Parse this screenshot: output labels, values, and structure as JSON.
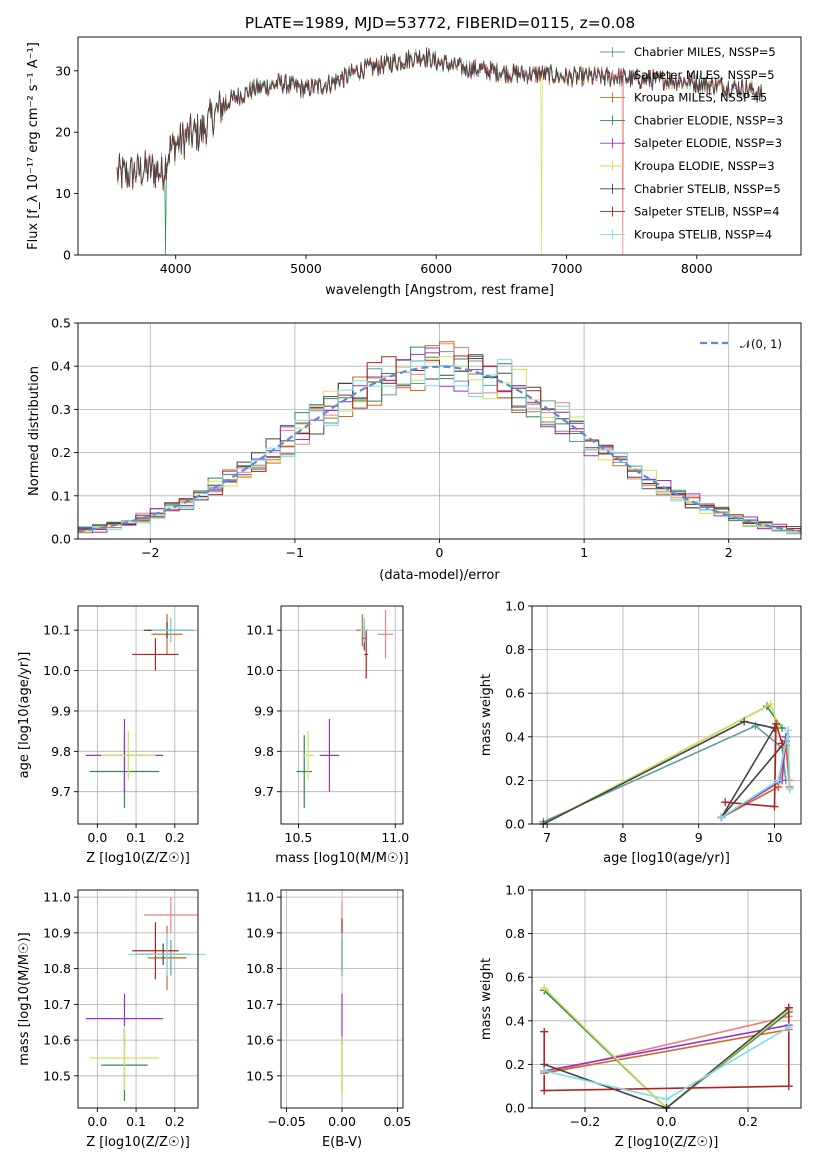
{
  "figure_title": "PLATE=1989, MJD=53772, FIBERID=0115, z=0.08",
  "colors": [
    "#5f9ea0",
    "#f08080",
    "#d2691e",
    "#2e8b57",
    "#9932cc",
    "#d4e157",
    "#444444",
    "#b22222",
    "#7fdbe6"
  ],
  "legend_colors": [
    "#5f9ea0",
    "#f08080",
    "#d2691e",
    "#2e8b57",
    "#9932cc",
    "#d4e157",
    "#444444",
    "#b22222",
    "#7fdbe6"
  ],
  "chart_data": [
    {
      "type": "line",
      "title": "PLATE=1989, MJD=53772, FIBERID=0115, z=0.08",
      "xlabel": "wavelength [Angstrom, rest frame]",
      "ylabel": "Flux [f_λ 10⁻¹⁷ erg cm⁻² s⁻¹ A⁻¹]",
      "xlim": [
        3250,
        8800
      ],
      "ylim": [
        0,
        35.5
      ],
      "xticks": [
        4000,
        5000,
        6000,
        7000,
        8000
      ],
      "yticks": [
        0,
        10,
        20,
        30
      ],
      "legend_position": "upper-right",
      "series": [
        {
          "name": "Chabrier MILES, N_SSP=5"
        },
        {
          "name": "Salpeter MILES, N_SSP=5"
        },
        {
          "name": "Kroupa MILES, N_SSP=5"
        },
        {
          "name": "Chabrier ELODIE, N_SSP=3"
        },
        {
          "name": "Salpeter ELODIE, N_SSP=3"
        },
        {
          "name": "Kroupa ELODIE, N_SSP=3"
        },
        {
          "name": "Chabrier STELIB, N_SSP=5"
        },
        {
          "name": "Salpeter STELIB, N_SSP=4"
        },
        {
          "name": "Kroupa STELIB, N_SSP=4"
        }
      ],
      "envelope": {
        "x": [
          3550,
          3700,
          3800,
          3900,
          3950,
          4000,
          4100,
          4200,
          4300,
          4400,
          4600,
          4800,
          5000,
          5200,
          5400,
          5600,
          5800,
          5900,
          6000,
          6200,
          6400,
          6600,
          6800,
          7000,
          7200,
          7400,
          7600,
          7800,
          8000,
          8200,
          8400,
          8500
        ],
        "y": [
          13,
          13.5,
          14,
          13.5,
          17,
          18,
          19.5,
          20,
          23,
          25,
          27,
          28,
          27,
          28,
          30,
          31,
          32,
          32.5,
          31.5,
          30.5,
          30,
          29.5,
          29.5,
          29,
          29,
          29,
          28.5,
          28.5,
          28,
          27.5,
          27,
          26
        ]
      },
      "drops": [
        {
          "series": 3,
          "x": 3920
        },
        {
          "series": 5,
          "x": 6810
        },
        {
          "series": 1,
          "x": 7430
        }
      ]
    },
    {
      "type": "histogram",
      "xlabel": "(data-model)/error",
      "ylabel": "Normed distribution",
      "xlim": [
        -2.5,
        2.5
      ],
      "ylim": [
        0,
        0.5
      ],
      "xticks": [
        -2,
        -1,
        0,
        1,
        2
      ],
      "yticks": [
        0.0,
        0.1,
        0.2,
        0.3,
        0.4,
        0.5
      ],
      "bin_width": 0.1,
      "reference_curve": "𝒩(0, 1)",
      "reference_color": "#5b8dd6",
      "legend_position": "upper-right"
    },
    {
      "type": "errorbar",
      "xlabel": "Z [log10(Z/Z☉)]",
      "ylabel": "age [log10(age/yr)]",
      "xlim": [
        -0.05,
        0.26
      ],
      "ylim": [
        9.62,
        10.16
      ],
      "xticks": [
        0.0,
        0.1,
        0.2
      ],
      "yticks": [
        9.7,
        9.8,
        9.9,
        10.0,
        10.1
      ],
      "points": [
        {
          "x": 0.19,
          "y": 10.1,
          "xerr": 0.05,
          "yerr": 0.03
        },
        {
          "x": 0.19,
          "y": 10.1,
          "xerr": 0.06,
          "yerr": 0.03
        },
        {
          "x": 0.18,
          "y": 10.09,
          "xerr": 0.04,
          "yerr": 0.05
        },
        {
          "x": 0.07,
          "y": 9.75,
          "xerr": 0.09,
          "yerr": 0.09
        },
        {
          "x": 0.07,
          "y": 9.79,
          "xerr": 0.1,
          "yerr": 0.09
        },
        {
          "x": 0.08,
          "y": 9.79,
          "xerr": 0.07,
          "yerr": 0.06
        },
        {
          "x": 0.18,
          "y": 10.1,
          "xerr": 0.06,
          "yerr": 0.02
        },
        {
          "x": 0.15,
          "y": 10.04,
          "xerr": 0.06,
          "yerr": 0.04
        },
        {
          "x": 0.19,
          "y": 10.1,
          "xerr": 0.05,
          "yerr": 0.03
        }
      ]
    },
    {
      "type": "errorbar",
      "xlabel": "mass [log10(M/M☉)]",
      "ylabel": "",
      "xlim": [
        10.41,
        11.04
      ],
      "ylim": [
        9.62,
        10.16
      ],
      "xticks": [
        10.5,
        11.0
      ],
      "yticks": [
        9.7,
        9.8,
        9.9,
        10.0,
        10.1
      ],
      "points": [
        {
          "x": 10.84,
          "y": 10.1,
          "xerr": 0.02,
          "yerr": 0.03
        },
        {
          "x": 10.95,
          "y": 10.09,
          "xerr": 0.04,
          "yerr": 0.06
        },
        {
          "x": 10.83,
          "y": 10.1,
          "xerr": 0.03,
          "yerr": 0.04
        },
        {
          "x": 10.53,
          "y": 9.75,
          "xerr": 0.04,
          "yerr": 0.09
        },
        {
          "x": 10.66,
          "y": 9.79,
          "xerr": 0.05,
          "yerr": 0.09
        },
        {
          "x": 10.55,
          "y": 9.79,
          "xerr": 0.03,
          "yerr": 0.06
        },
        {
          "x": 10.84,
          "y": 10.08,
          "xerr": 0.01,
          "yerr": 0.03
        },
        {
          "x": 10.85,
          "y": 10.04,
          "xerr": 0.01,
          "yerr": 0.06
        },
        {
          "x": 10.84,
          "y": 10.1,
          "xerr": 0.02,
          "yerr": 0.03
        }
      ]
    },
    {
      "type": "line",
      "xlabel": "age [log10(age/yr)]",
      "ylabel": "mass weight",
      "xlim": [
        6.8,
        10.35
      ],
      "ylim": [
        0,
        1.0
      ],
      "xticks": [
        7,
        8,
        9,
        10
      ],
      "yticks": [
        0.0,
        0.2,
        0.4,
        0.6,
        0.8,
        1.0
      ],
      "series": [
        {
          "x": [
            6.95,
            9.75,
            10.1,
            10.15
          ],
          "y": [
            0.01,
            0.45,
            0.35,
            0.2
          ]
        },
        {
          "x": [
            9.3,
            10.05,
            10.15,
            10.2
          ],
          "y": [
            0.03,
            0.17,
            0.4,
            0.2
          ]
        },
        {
          "x": [
            9.3,
            10.05,
            10.15,
            10.2
          ],
          "y": [
            0.03,
            0.17,
            0.36,
            0.17
          ]
        },
        {
          "x": [
            6.95,
            9.9,
            10.1
          ],
          "y": [
            0.0,
            0.54,
            0.44
          ]
        },
        {
          "x": [
            9.3,
            10.1,
            10.15
          ],
          "y": [
            0.03,
            0.2,
            0.4
          ]
        },
        {
          "x": [
            6.95,
            9.95,
            10.05
          ],
          "y": [
            0.0,
            0.55,
            0.45
          ]
        },
        {
          "x": [
            6.95,
            9.6,
            10.0,
            9.3,
            10.15
          ],
          "y": [
            0.0,
            0.47,
            0.44,
            0.03,
            0.38
          ]
        },
        {
          "x": [
            9.35,
            10.0,
            10.02,
            10.1
          ],
          "y": [
            0.1,
            0.08,
            0.46,
            0.37
          ]
        },
        {
          "x": [
            9.3,
            10.05,
            10.18,
            10.2
          ],
          "y": [
            0.03,
            0.2,
            0.43,
            0.16
          ]
        }
      ]
    },
    {
      "type": "errorbar",
      "xlabel": "Z [log10(Z/Z☉)]",
      "ylabel": "mass [log10(M/M☉)]",
      "xlim": [
        -0.05,
        0.26
      ],
      "ylim": [
        10.41,
        11.02
      ],
      "xticks": [
        0.0,
        0.1,
        0.2
      ],
      "yticks": [
        10.5,
        10.6,
        10.7,
        10.8,
        10.9,
        11.0
      ],
      "points": [
        {
          "x": 0.19,
          "y": 10.83,
          "xerr": 0.04,
          "yerr": 0.05
        },
        {
          "x": 0.19,
          "y": 10.95,
          "xerr": 0.07,
          "yerr": 0.05
        },
        {
          "x": 0.18,
          "y": 10.83,
          "xerr": 0.05,
          "yerr": 0.09
        },
        {
          "x": 0.07,
          "y": 10.53,
          "xerr": 0.06,
          "yerr": 0.1
        },
        {
          "x": 0.07,
          "y": 10.66,
          "xerr": 0.1,
          "yerr": 0.07
        },
        {
          "x": 0.07,
          "y": 10.55,
          "xerr": 0.09,
          "yerr": 0.09
        },
        {
          "x": 0.17,
          "y": 10.84,
          "xerr": 0.07,
          "yerr": 0.03
        },
        {
          "x": 0.15,
          "y": 10.85,
          "xerr": 0.06,
          "yerr": 0.08
        },
        {
          "x": 0.18,
          "y": 10.84,
          "xerr": 0.1,
          "yerr": 0.06
        }
      ]
    },
    {
      "type": "errorbar",
      "xlabel": "E(B-V)",
      "ylabel": "",
      "xlim": [
        -0.055,
        0.055
      ],
      "ylim": [
        10.41,
        11.02
      ],
      "xticks": [
        -0.05,
        0.0,
        0.05
      ],
      "yticks": [
        10.5,
        10.6,
        10.7,
        10.8,
        10.9,
        11.0
      ],
      "points": [
        {
          "x": 0,
          "y": 10.84,
          "xerr": 0,
          "yerr": 0.06
        },
        {
          "x": 0,
          "y": 10.94,
          "xerr": 0,
          "yerr": 0.05
        },
        {
          "x": 0,
          "y": 10.84,
          "xerr": 0,
          "yerr": 0.05
        },
        {
          "x": 0,
          "y": 10.53,
          "xerr": 0,
          "yerr": 0.08
        },
        {
          "x": 0,
          "y": 10.66,
          "xerr": 0,
          "yerr": 0.07
        },
        {
          "x": 0,
          "y": 10.53,
          "xerr": 0,
          "yerr": 0.08
        },
        {
          "x": 0,
          "y": 10.84,
          "xerr": 0,
          "yerr": 0.04
        },
        {
          "x": 0,
          "y": 10.86,
          "xerr": 0,
          "yerr": 0.08
        },
        {
          "x": 0,
          "y": 10.84,
          "xerr": 0,
          "yerr": 0.06
        }
      ]
    },
    {
      "type": "line",
      "xlabel": "Z [log10(Z/Z☉)]",
      "ylabel": "mass weight",
      "xlim": [
        -0.33,
        0.33
      ],
      "ylim": [
        0,
        1.0
      ],
      "xticks": [
        -0.2,
        0.0,
        0.2
      ],
      "yticks": [
        0.0,
        0.2,
        0.4,
        0.6,
        0.8,
        1.0
      ],
      "series": [
        {
          "x": [
            -0.3,
            0.0,
            0.3
          ],
          "y": [
            0.54,
            0.0,
            0.45
          ]
        },
        {
          "x": [
            -0.3,
            0.3
          ],
          "y": [
            0.16,
            0.42
          ]
        },
        {
          "x": [
            -0.3,
            0.3
          ],
          "y": [
            0.16,
            0.36
          ]
        },
        {
          "x": [
            -0.3,
            0.0,
            0.3
          ],
          "y": [
            0.54,
            0.0,
            0.44
          ]
        },
        {
          "x": [
            -0.3,
            0.3
          ],
          "y": [
            0.17,
            0.38
          ]
        },
        {
          "x": [
            -0.3,
            0.0,
            0.3
          ],
          "y": [
            0.55,
            0.0,
            0.45
          ]
        },
        {
          "x": [
            -0.3,
            0.0,
            0.3
          ],
          "y": [
            0.2,
            0.0,
            0.46
          ]
        },
        {
          "x": [
            -0.3,
            -0.3,
            0.3,
            0.3
          ],
          "y": [
            0.35,
            0.08,
            0.1,
            0.46
          ]
        },
        {
          "x": [
            -0.3,
            0.0,
            0.3
          ],
          "y": [
            0.17,
            0.04,
            0.37
          ]
        }
      ]
    }
  ]
}
